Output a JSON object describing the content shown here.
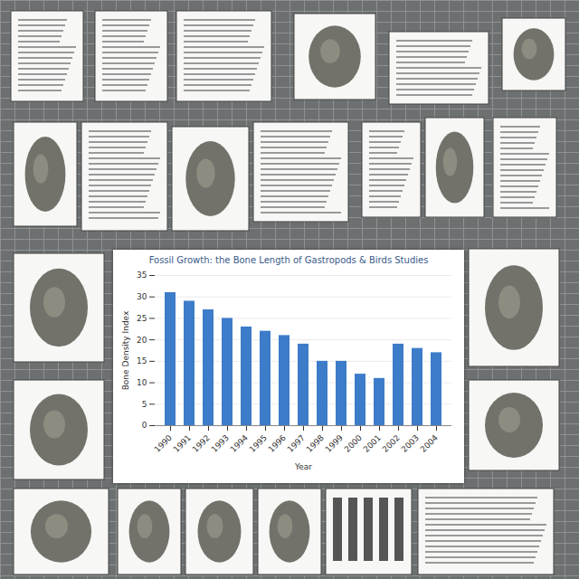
{
  "chart_data": {
    "type": "bar",
    "title": "Fossil Growth: the Bone Length of Gastropods & Birds Studies",
    "x_label": "Year",
    "y_label": "Bone Density Index",
    "categories": [
      "1990",
      "1991",
      "1992",
      "1993",
      "1994",
      "1995",
      "1996",
      "1997",
      "1998",
      "1999",
      "2000",
      "2001",
      "2002",
      "2003",
      "2004"
    ],
    "values": [
      31,
      29,
      27,
      25,
      23,
      22,
      21,
      19,
      15,
      15,
      12,
      11,
      19,
      18,
      17
    ],
    "color": "#3d7cc9",
    "ylim": [
      0,
      35
    ],
    "yticks": [
      0,
      5,
      10,
      15,
      20,
      25,
      30,
      35
    ],
    "grid": true
  }
}
